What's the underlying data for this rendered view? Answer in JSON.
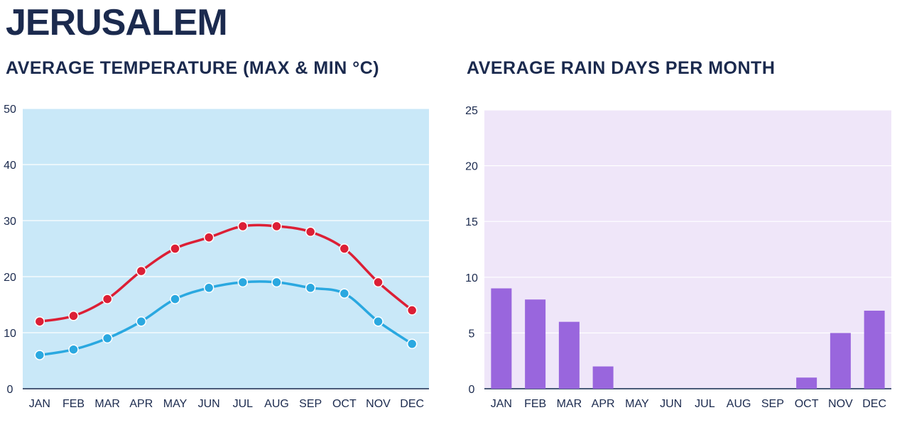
{
  "page": {
    "title": "JERUSALEM"
  },
  "chart_data": [
    {
      "type": "line",
      "title": "AVERAGE TEMPERATURE (MAX & MIN °C)",
      "categories": [
        "JAN",
        "FEB",
        "MAR",
        "APR",
        "MAY",
        "JUN",
        "JUL",
        "AUG",
        "SEP",
        "OCT",
        "NOV",
        "DEC"
      ],
      "ylim": [
        0,
        50
      ],
      "yticks": [
        0,
        10,
        20,
        30,
        40,
        50
      ],
      "grid": true,
      "background": "#c9e8f8",
      "series": [
        {
          "values": [
            12,
            13,
            16,
            21,
            25,
            27,
            29,
            29,
            28,
            25,
            19,
            14
          ],
          "color": "#dc1f35"
        },
        {
          "values": [
            6,
            7,
            9,
            12,
            16,
            18,
            19,
            19,
            18,
            17,
            12,
            8
          ],
          "color": "#2aa8e0"
        }
      ]
    },
    {
      "type": "bar",
      "title": "AVERAGE RAIN DAYS PER MONTH",
      "categories": [
        "JAN",
        "FEB",
        "MAR",
        "APR",
        "MAY",
        "JUN",
        "JUL",
        "AUG",
        "SEP",
        "OCT",
        "NOV",
        "DEC"
      ],
      "values": [
        9,
        8,
        6,
        2,
        0,
        0,
        0,
        0,
        0,
        1,
        5,
        7
      ],
      "ylim": [
        0,
        25
      ],
      "yticks": [
        0,
        5,
        10,
        15,
        20,
        25
      ],
      "grid": true,
      "background": "#efe6f9",
      "color": "#9966dd"
    }
  ]
}
